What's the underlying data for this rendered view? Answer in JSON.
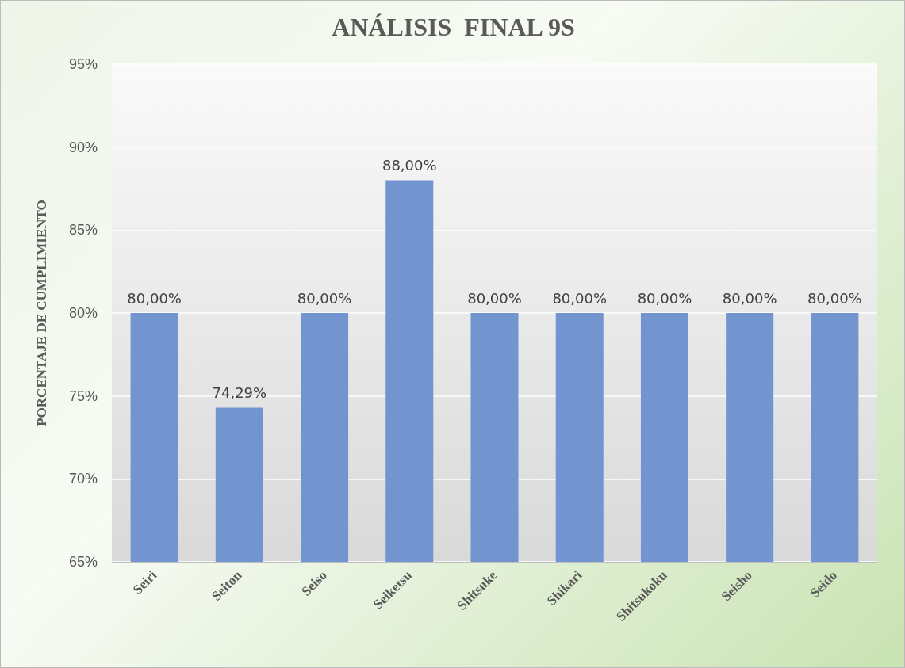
{
  "chart_data": {
    "type": "bar",
    "title": "ANÁLISIS  FINAL 9S",
    "ylabel": "PORCENTAJE DE CUMPLIMIENTO",
    "categories": [
      "Seiri",
      "Seiton",
      "Seiso",
      "Seiketsu",
      "Shitsuke",
      "Shikari",
      "Shitsukoku",
      "Seisho",
      "Seido"
    ],
    "values": [
      80,
      74.29,
      80,
      88,
      80,
      80,
      80,
      80,
      80
    ],
    "value_labels": [
      "80,00%",
      "74,29%",
      "80,00%",
      "88,00%",
      "80,00%",
      "80,00%",
      "80,00%",
      "80,00%",
      "80,00%"
    ],
    "color": "#7295d0",
    "ylim": [
      65,
      95
    ],
    "yticks": [
      {
        "value": 65,
        "label": "65%"
      },
      {
        "value": 70,
        "label": "70%"
      },
      {
        "value": 75,
        "label": "75%"
      },
      {
        "value": 80,
        "label": "80%"
      },
      {
        "value": 85,
        "label": "85%"
      },
      {
        "value": 90,
        "label": "90%"
      },
      {
        "value": 95,
        "label": "95%"
      }
    ],
    "grid": "y"
  }
}
